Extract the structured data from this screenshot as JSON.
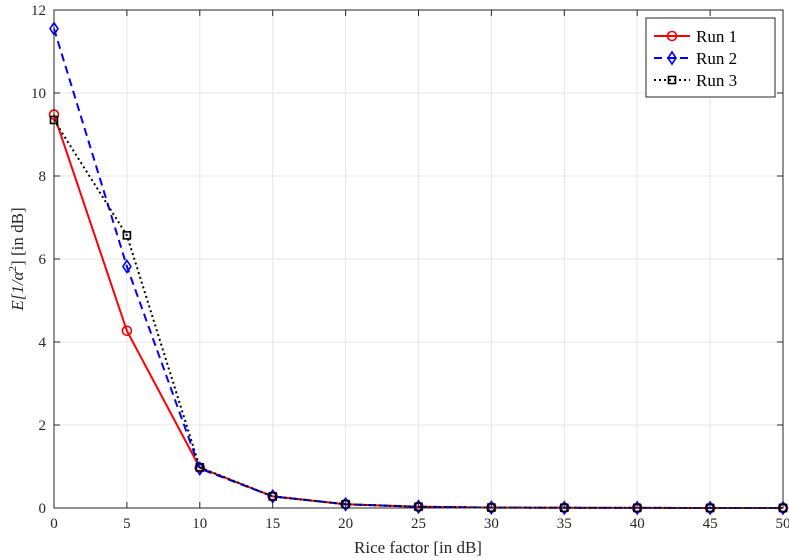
{
  "chart_data": {
    "type": "line",
    "title": "",
    "xlabel": "Rice factor [in dB]",
    "ylabel_parts": {
      "prefix": "E[1/",
      "alpha": "α",
      "exp": "2",
      "suffix": "] [in dB]"
    },
    "xlim": [
      0,
      50
    ],
    "ylim": [
      0,
      12
    ],
    "xticks": [
      0,
      5,
      10,
      15,
      20,
      25,
      30,
      35,
      40,
      45,
      50
    ],
    "yticks": [
      0,
      2,
      4,
      6,
      8,
      10,
      12
    ],
    "grid": true,
    "legend_position": "top-right",
    "x": [
      0,
      5,
      10,
      15,
      20,
      25,
      30,
      35,
      40,
      45,
      50
    ],
    "series": [
      {
        "name": "Run 1",
        "color": "#ff0000",
        "line_style": "solid",
        "marker": "circle",
        "values": [
          9.48,
          4.27,
          0.97,
          0.28,
          0.09,
          0.03,
          0.01,
          0.005,
          0.002,
          0.001,
          0.0005
        ]
      },
      {
        "name": "Run 2",
        "color": "#0000ff",
        "line_style": "dashed",
        "marker": "diamond",
        "values": [
          11.55,
          5.82,
          0.95,
          0.28,
          0.09,
          0.03,
          0.01,
          0.005,
          0.002,
          0.001,
          0.0005
        ]
      },
      {
        "name": "Run 3",
        "color": "#000000",
        "line_style": "dotted",
        "marker": "square",
        "values": [
          9.35,
          6.57,
          0.98,
          0.28,
          0.09,
          0.03,
          0.01,
          0.005,
          0.002,
          0.001,
          0.0005
        ]
      }
    ]
  }
}
